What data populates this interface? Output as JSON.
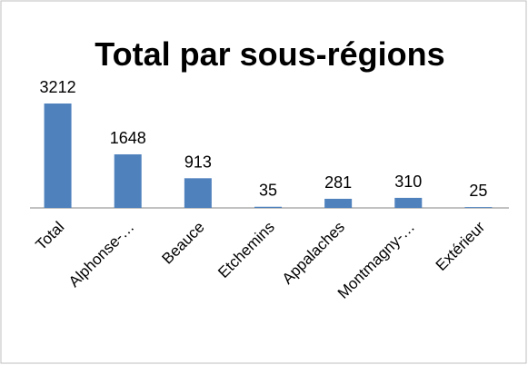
{
  "chart_data": {
    "type": "bar",
    "title": "Total par sous-régions",
    "categories": [
      "Total",
      "Alphonse-…",
      "Beauce",
      "Etchemins",
      "Appalaches",
      "Montmagny-…",
      "Extérieur"
    ],
    "values": [
      3212,
      1648,
      913,
      35,
      281,
      310,
      25
    ],
    "color": "#4f81bd"
  }
}
